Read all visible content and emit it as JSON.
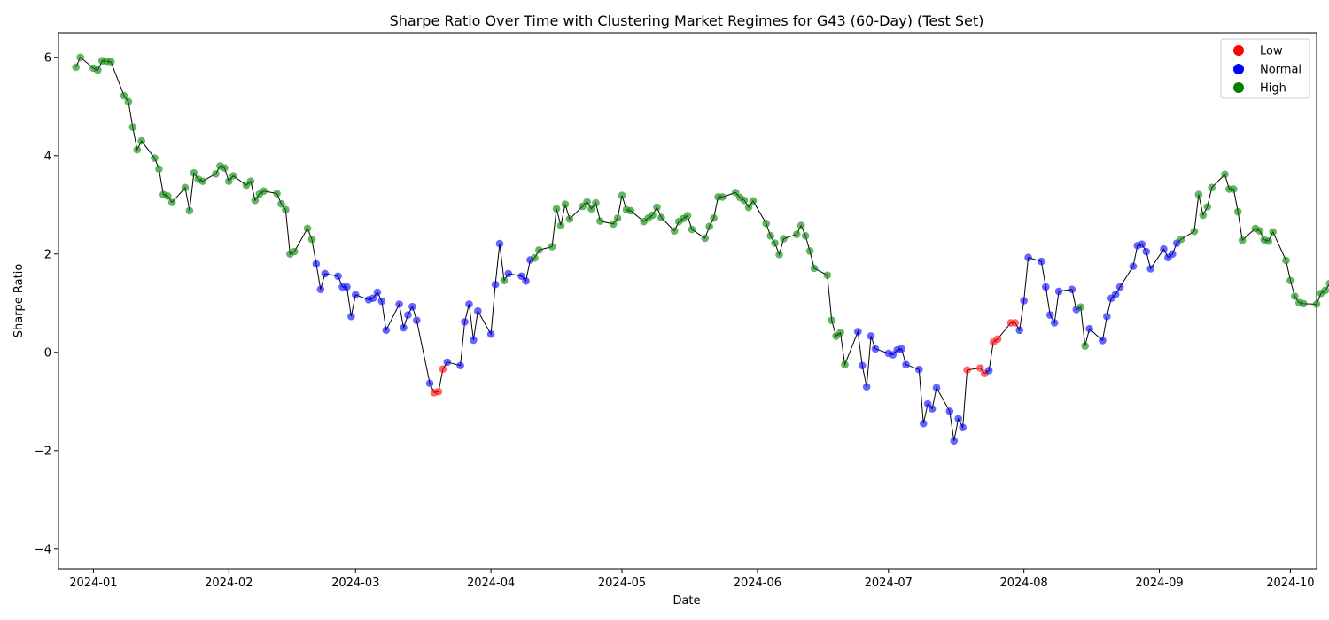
{
  "chart_data": {
    "type": "scatter",
    "title": "Sharpe Ratio Over Time with Clustering Market Regimes for G43 (60-Day) (Test Set)",
    "xlabel": "Date",
    "ylabel": "Sharpe Ratio",
    "xlim": [
      "2023-12-24",
      "2024-10-07"
    ],
    "ylim": [
      -4.4,
      6.5
    ],
    "x_ticks": [
      "2024-01-01",
      "2024-02-01",
      "2024-03-01",
      "2024-04-01",
      "2024-05-01",
      "2024-06-01",
      "2024-07-01",
      "2024-08-01",
      "2024-09-01",
      "2024-10-01"
    ],
    "x_tick_labels": [
      "2024-01",
      "2024-02",
      "2024-03",
      "2024-04",
      "2024-05",
      "2024-06",
      "2024-07",
      "2024-08",
      "2024-09",
      "2024-10"
    ],
    "y_ticks": [
      -4,
      -2,
      0,
      2,
      4,
      6
    ],
    "y_tick_labels": [
      "−4",
      "−2",
      "0",
      "2",
      "4",
      "6"
    ],
    "grid": false,
    "line_color": "#000000",
    "legend": {
      "position": "top-right",
      "entries": [
        {
          "label": "Low",
          "color": "#ff0000"
        },
        {
          "label": "Normal",
          "color": "#0000ff"
        },
        {
          "label": "High",
          "color": "#008000"
        }
      ]
    },
    "regime_colors": {
      "Low": "#ff0000",
      "Normal": "#0000ff",
      "High": "#008000"
    },
    "regime_codes": {
      "L": "Low",
      "N": "Normal",
      "H": "High"
    },
    "start_date": "2023-12-28",
    "values": [
      5.8,
      6.0,
      5.78,
      5.74,
      5.93,
      5.92,
      5.91,
      5.22,
      5.1,
      4.58,
      4.12,
      4.3,
      3.95,
      3.73,
      3.21,
      3.18,
      3.05,
      3.35,
      2.88,
      3.65,
      3.52,
      3.48,
      3.63,
      3.79,
      3.75,
      3.48,
      3.59,
      3.4,
      3.48,
      3.09,
      3.22,
      3.28,
      3.23,
      3.02,
      2.9,
      2.0,
      2.05,
      2.52,
      2.3,
      1.8,
      1.28,
      1.6,
      1.55,
      1.33,
      1.33,
      0.73,
      1.17,
      1.07,
      1.1,
      1.22,
      1.04,
      0.45,
      0.98,
      0.5,
      0.76,
      0.93,
      0.65,
      -0.63,
      -0.82,
      -0.8,
      -0.34,
      -0.2,
      -0.27,
      0.62,
      0.98,
      0.25,
      0.84,
      0.37,
      1.38,
      2.21,
      1.46,
      1.6,
      1.55,
      1.45,
      1.88,
      1.92,
      2.08,
      2.15,
      2.92,
      2.58,
      3.01,
      2.71,
      2.97,
      3.06,
      2.92,
      3.04,
      2.67,
      2.61,
      2.73,
      3.19,
      2.9,
      2.88,
      2.66,
      2.73,
      2.79,
      2.95,
      2.74,
      2.47,
      2.66,
      2.72,
      2.78,
      2.5,
      2.32,
      2.56,
      2.73,
      3.16,
      3.16,
      3.25,
      3.15,
      3.09,
      2.95,
      3.08,
      2.62,
      2.37,
      2.22,
      1.99,
      2.31,
      2.4,
      2.58,
      2.37,
      2.06,
      1.71,
      1.57,
      0.65,
      0.33,
      0.4,
      -0.25,
      0.42,
      -0.27,
      -0.7,
      0.33,
      0.07,
      -0.02,
      -0.05,
      0.05,
      0.07,
      -0.25,
      -0.35,
      -1.45,
      -1.05,
      -1.15,
      -0.72,
      -1.2,
      -1.8,
      -1.35,
      -1.53,
      -0.36,
      -0.32,
      -0.43,
      -0.37,
      0.21,
      0.27,
      0.6,
      0.6,
      0.45,
      1.05,
      1.93,
      1.85,
      1.33,
      0.76,
      0.6,
      1.24,
      1.28,
      0.87,
      0.92,
      0.13,
      0.48,
      0.24,
      0.73,
      1.1,
      1.18,
      1.33,
      1.75,
      2.17,
      2.2,
      2.05,
      1.7,
      2.1,
      1.93,
      2.0,
      2.22,
      2.3,
      2.46,
      3.21,
      2.79,
      2.96,
      3.35,
      3.62,
      3.32,
      3.32,
      2.86,
      2.28,
      2.52,
      2.47,
      2.29,
      2.26,
      2.45,
      1.87,
      1.46,
      1.14,
      1.01,
      0.99,
      0.98,
      1.2,
      1.26,
      1.4,
      0.98,
      1.02,
      1.01,
      0.82,
      0.46,
      0.26,
      0.32,
      0.13,
      0.18,
      -0.92,
      -1.98,
      -1.68,
      -1.52,
      -1.08,
      -0.67,
      -1.28,
      -1.22,
      -1.25,
      -1.63,
      -1.61,
      -2.22,
      -1.0,
      -1.63,
      -2.21,
      -2.31,
      -3.1,
      -3.13,
      -3.21,
      -3.8,
      -3.86,
      -3.47,
      -3.26,
      -3.05,
      -2.59,
      -3.01,
      -2.56,
      -2.74,
      -3.05,
      -2.73,
      -3.14,
      -3.2,
      -3.77,
      -3.08,
      -2.95,
      -2.35,
      -2.43,
      -2.81,
      -2.61,
      -2.0,
      -2.28,
      -2.4,
      -1.77,
      -1.28,
      -1.23,
      -0.99,
      -0.71,
      0.05,
      0.3,
      0.76,
      -0.01,
      0.19,
      0.85,
      0.74,
      0.43,
      0.47,
      0.4,
      0.74,
      1.1,
      0.88,
      0.91,
      0.73
    ],
    "regimes": "HHHHHHHHHHHHHHHHHHHHHHHHHHHHHHHHHHHHHHHNNNNNNNNNNNNNNNNNNNLLLNNNNNNNNNHNNNNHHHHHHHHHHHHHHHHHHHHHHHHHHHHHHHHHHHHHHHHHHHHHHHHHHHHNNNNNNNNNNNNNNNNNNNLLLNLLLLNNNNNNNNNNHHNNNNNNNNNNNNNNNHHHHHHHHHHHHHHHHHHHHHHHHHHHNNNNNNNNNNNNNNNNNNNLLLLNLLLLLLLLLLLLLLLLLLLLLLLLLLLLLLLLLLLLLLLLLLNNNNNNNNNNNNNNNNN"
  }
}
